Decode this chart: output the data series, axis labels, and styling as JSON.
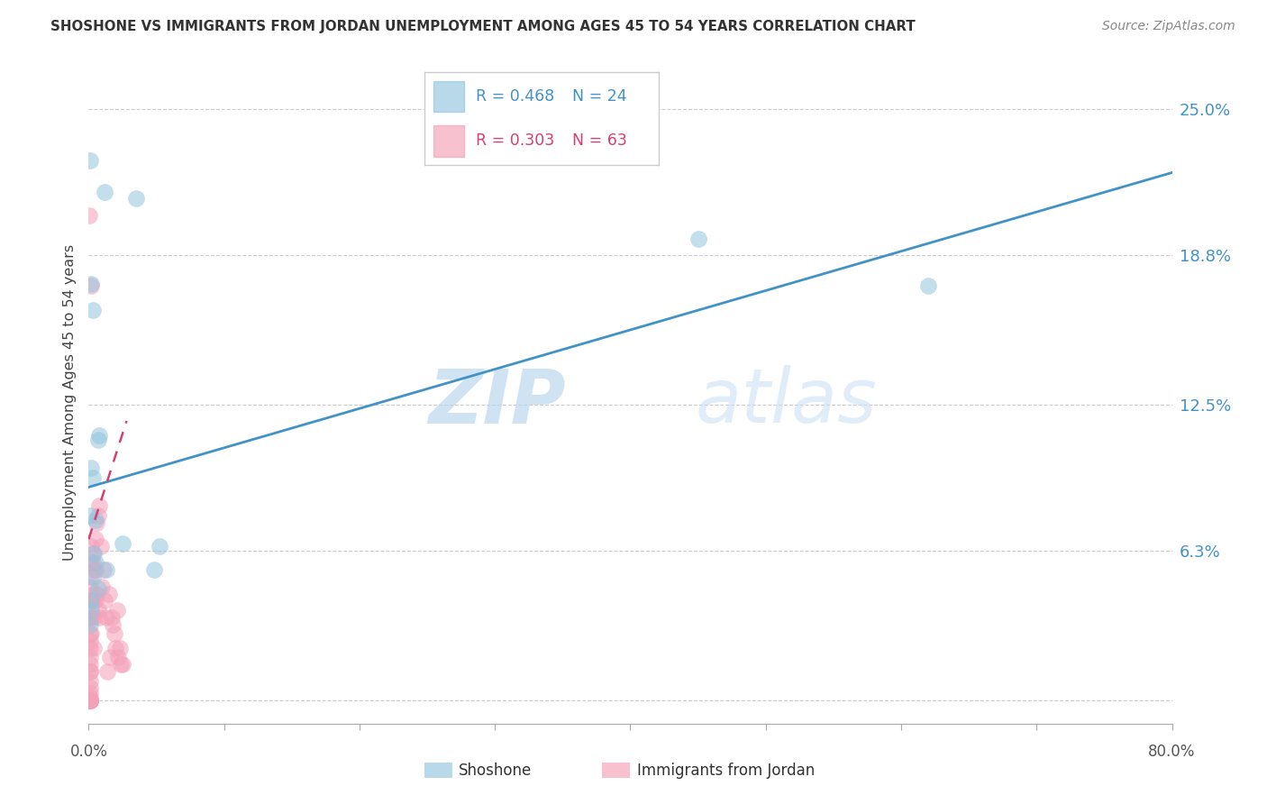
{
  "title": "SHOSHONE VS IMMIGRANTS FROM JORDAN UNEMPLOYMENT AMONG AGES 45 TO 54 YEARS CORRELATION CHART",
  "source": "Source: ZipAtlas.com",
  "shoshone_color": "#92c5de",
  "jordan_color": "#f4a0b8",
  "shoshone_label": "Shoshone",
  "jordan_label": "Immigrants from Jordan",
  "legend_r_shoshone": "R = 0.468",
  "legend_n_shoshone": "N = 24",
  "legend_r_jordan": "R = 0.303",
  "legend_n_jordan": "N = 63",
  "watermark_zip": "ZIP",
  "watermark_atlas": "atlas",
  "xmin": 0.0,
  "xmax": 0.8,
  "ymin": -0.01,
  "ymax": 0.262,
  "ytick_vals": [
    0.0,
    0.063,
    0.125,
    0.188,
    0.25
  ],
  "ytick_labels": [
    "",
    "6.3%",
    "12.5%",
    "18.8%",
    "25.0%"
  ],
  "xtick_vals": [
    0.0,
    0.1,
    0.2,
    0.3,
    0.4,
    0.5,
    0.6,
    0.7,
    0.8
  ],
  "shoshone_x": [
    0.001,
    0.012,
    0.035,
    0.002,
    0.003,
    0.007,
    0.002,
    0.003,
    0.001,
    0.005,
    0.008,
    0.025,
    0.052,
    0.004,
    0.048,
    0.45,
    0.62,
    0.005,
    0.013,
    0.003,
    0.007,
    0.002,
    0.002,
    0.001
  ],
  "shoshone_y": [
    0.228,
    0.215,
    0.212,
    0.176,
    0.165,
    0.11,
    0.098,
    0.094,
    0.078,
    0.076,
    0.112,
    0.066,
    0.065,
    0.062,
    0.055,
    0.195,
    0.175,
    0.058,
    0.055,
    0.052,
    0.047,
    0.042,
    0.038,
    0.032
  ],
  "jordan_x": [
    0.0005,
    0.001,
    0.001,
    0.001,
    0.001,
    0.001,
    0.001,
    0.001,
    0.001,
    0.001,
    0.001,
    0.001,
    0.001,
    0.001,
    0.001,
    0.001,
    0.001,
    0.001,
    0.001,
    0.001,
    0.001,
    0.001,
    0.001,
    0.001,
    0.0015,
    0.002,
    0.002,
    0.002,
    0.002,
    0.002,
    0.003,
    0.003,
    0.003,
    0.004,
    0.004,
    0.004,
    0.004,
    0.005,
    0.005,
    0.005,
    0.006,
    0.006,
    0.007,
    0.007,
    0.008,
    0.008,
    0.009,
    0.01,
    0.011,
    0.012,
    0.013,
    0.015,
    0.017,
    0.019,
    0.02,
    0.022,
    0.024,
    0.021,
    0.025,
    0.018,
    0.016,
    0.014,
    0.023
  ],
  "jordan_y": [
    0.205,
    0.0,
    0.0,
    0.0,
    0.0,
    0.0,
    0.012,
    0.025,
    0.035,
    0.042,
    0.048,
    0.052,
    0.035,
    0.028,
    0.022,
    0.018,
    0.015,
    0.012,
    0.008,
    0.005,
    0.003,
    0.001,
    0.0,
    0.0,
    0.175,
    0.065,
    0.058,
    0.042,
    0.035,
    0.028,
    0.062,
    0.058,
    0.045,
    0.055,
    0.042,
    0.035,
    0.022,
    0.068,
    0.055,
    0.042,
    0.075,
    0.045,
    0.078,
    0.038,
    0.082,
    0.035,
    0.065,
    0.048,
    0.055,
    0.042,
    0.035,
    0.045,
    0.035,
    0.028,
    0.022,
    0.018,
    0.015,
    0.038,
    0.015,
    0.032,
    0.018,
    0.012,
    0.022
  ],
  "blue_line_x": [
    0.0,
    0.8
  ],
  "blue_line_y": [
    0.09,
    0.223
  ],
  "pink_line_x": [
    0.0,
    0.028
  ],
  "pink_line_y": [
    0.068,
    0.118
  ],
  "blue_line_color": "#4292c6",
  "pink_line_color": "#d64070",
  "grid_color": "#cccccc",
  "title_color": "#333333",
  "axis_label_color": "#444444",
  "tick_label_color": "#4292c6",
  "source_color": "#888888",
  "bg_color": "#ffffff"
}
